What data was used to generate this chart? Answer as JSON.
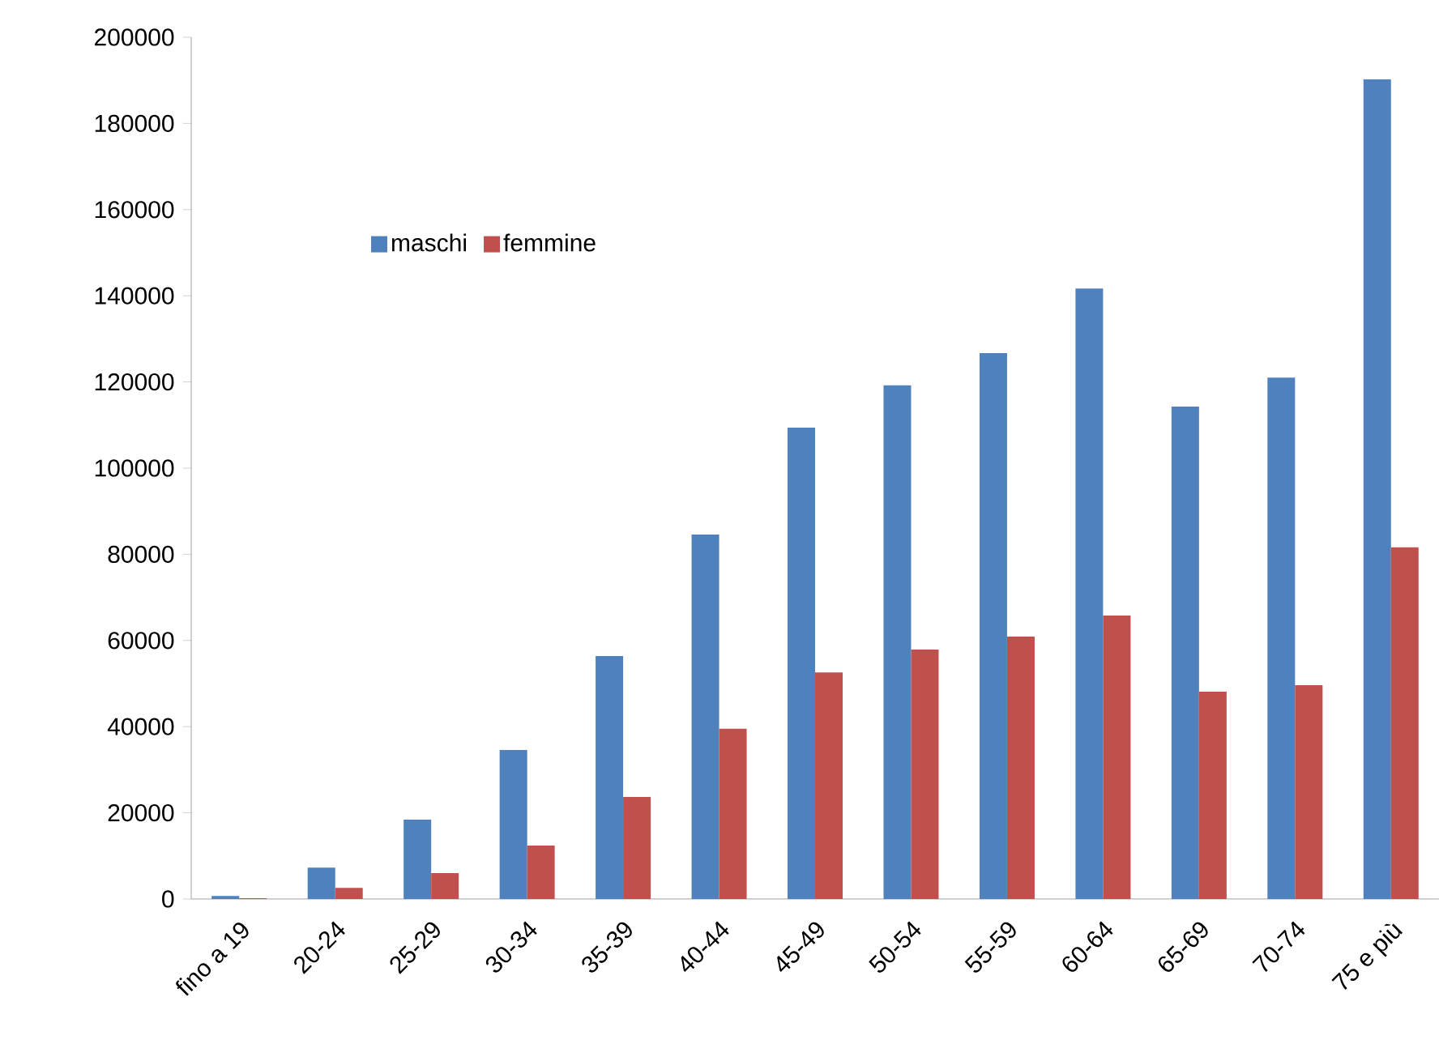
{
  "chart_data": {
    "type": "bar",
    "categories": [
      "fino a 19",
      "20-24",
      "25-29",
      "30-34",
      "35-39",
      "40-44",
      "45-49",
      "50-54",
      "55-59",
      "60-64",
      "65-69",
      "70-74",
      "75 e più"
    ],
    "series": [
      {
        "name": "maschi",
        "color": "#4f81bd",
        "values": [
          700,
          7300,
          18400,
          34600,
          56400,
          84600,
          109400,
          119200,
          126700,
          141700,
          114300,
          121000,
          190200
        ]
      },
      {
        "name": "femmine",
        "color": "#c0504d",
        "values": [
          200,
          2600,
          6000,
          12400,
          23700,
          39500,
          52600,
          57900,
          60900,
          65800,
          48100,
          49600,
          81600
        ]
      }
    ],
    "ylim": [
      0,
      200000
    ],
    "yticks": [
      0,
      20000,
      40000,
      60000,
      80000,
      100000,
      120000,
      140000,
      160000,
      180000,
      200000
    ],
    "grid": false,
    "legend": "top left"
  }
}
